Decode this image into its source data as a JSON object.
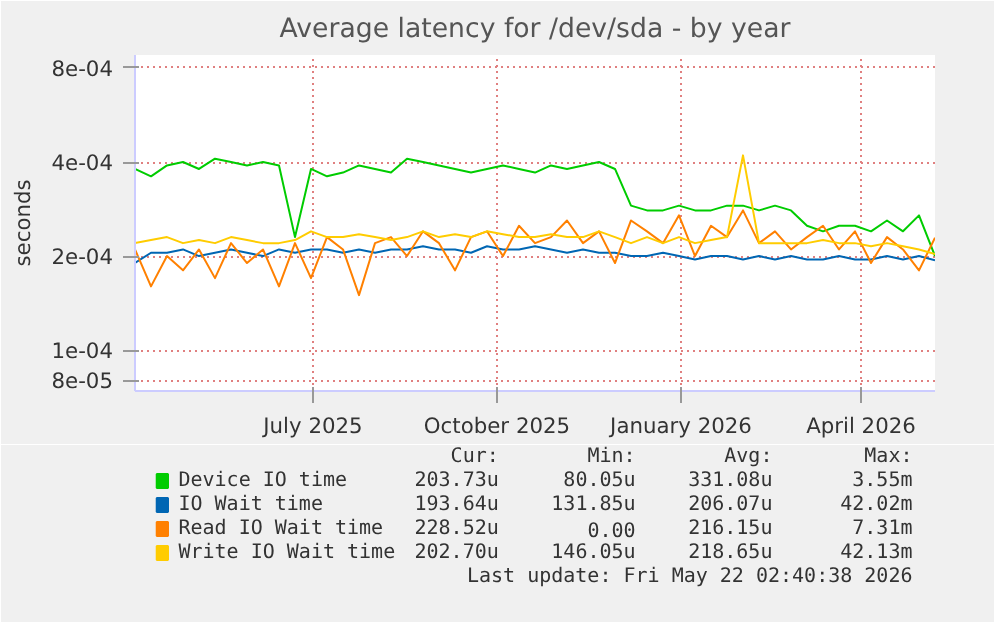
{
  "chart_data": {
    "type": "line",
    "title": "Average latency for /dev/sda - by year",
    "ylabel": "seconds",
    "log": "y",
    "grid": true,
    "legend": "bottom",
    "line_style": "solid",
    "xlim": [
      "2025-04-17",
      "2026-05-22"
    ],
    "xticks": [
      {
        "value": "2025-07-15",
        "label": "July 2025"
      },
      {
        "value": "2025-10-15",
        "label": "October 2025"
      },
      {
        "value": "2026-01-15",
        "label": "January 2026"
      },
      {
        "value": "2026-04-15",
        "label": "April 2026"
      }
    ],
    "ylim": [
      7.4e-05,
      0.00088
    ],
    "yticks": [
      {
        "value": 8e-05,
        "label": "8e-05"
      },
      {
        "value": 0.0001,
        "label": "1e-04"
      },
      {
        "value": 0.0002,
        "label": "2e-04"
      },
      {
        "value": 0.0004,
        "label": "4e-04"
      },
      {
        "value": 0.0008,
        "label": "8e-04"
      }
    ],
    "x": [
      "2025-04-17",
      "2025-04-25",
      "2025-05-03",
      "2025-05-11",
      "2025-05-19",
      "2025-05-27",
      "2025-06-04",
      "2025-06-12",
      "2025-06-20",
      "2025-06-28",
      "2025-07-06",
      "2025-07-14",
      "2025-07-22",
      "2025-07-30",
      "2025-08-07",
      "2025-08-15",
      "2025-08-23",
      "2025-08-31",
      "2025-09-08",
      "2025-09-16",
      "2025-09-24",
      "2025-10-02",
      "2025-10-10",
      "2025-10-18",
      "2025-10-26",
      "2025-11-03",
      "2025-11-11",
      "2025-11-19",
      "2025-11-27",
      "2025-12-05",
      "2025-12-13",
      "2025-12-21",
      "2025-12-29",
      "2026-01-06",
      "2026-01-14",
      "2026-01-22",
      "2026-01-30",
      "2026-02-07",
      "2026-02-15",
      "2026-02-23",
      "2026-03-03",
      "2026-03-11",
      "2026-03-19",
      "2026-03-27",
      "2026-04-04",
      "2026-04-12",
      "2026-04-20",
      "2026-04-28",
      "2026-05-06",
      "2026-05-14",
      "2026-05-22"
    ],
    "series": [
      {
        "name": "Device IO time",
        "color": "#00cc00",
        "values": [
          0.00038,
          0.00036,
          0.00039,
          0.0004,
          0.00038,
          0.00041,
          0.0004,
          0.00039,
          0.0004,
          0.00039,
          0.00023,
          0.00038,
          0.00036,
          0.00037,
          0.00039,
          0.00038,
          0.00037,
          0.00041,
          0.0004,
          0.00039,
          0.00038,
          0.00037,
          0.00038,
          0.00039,
          0.00038,
          0.00037,
          0.00039,
          0.00038,
          0.00039,
          0.0004,
          0.00038,
          0.00029,
          0.00028,
          0.00028,
          0.00029,
          0.00028,
          0.00028,
          0.00029,
          0.00029,
          0.00028,
          0.00029,
          0.00028,
          0.00025,
          0.00024,
          0.00025,
          0.00025,
          0.00024,
          0.00026,
          0.00024,
          0.00027,
          0.0002
        ]
      },
      {
        "name": "IO Wait time",
        "color": "#0066b3",
        "values": [
          0.00019,
          0.000205,
          0.000205,
          0.00021,
          0.0002,
          0.000205,
          0.00021,
          0.000205,
          0.0002,
          0.00021,
          0.000205,
          0.00021,
          0.00021,
          0.000205,
          0.00021,
          0.000205,
          0.00021,
          0.00021,
          0.000215,
          0.00021,
          0.00021,
          0.000205,
          0.000215,
          0.00021,
          0.00021,
          0.000215,
          0.00021,
          0.000205,
          0.00021,
          0.000205,
          0.000205,
          0.0002,
          0.0002,
          0.000205,
          0.0002,
          0.000195,
          0.0002,
          0.0002,
          0.000195,
          0.0002,
          0.000195,
          0.0002,
          0.000195,
          0.000195,
          0.0002,
          0.000195,
          0.000195,
          0.0002,
          0.000195,
          0.0002,
          0.000194
        ]
      },
      {
        "name": "Read IO Wait time",
        "color": "#ff8000",
        "values": [
          0.00021,
          0.00016,
          0.0002,
          0.00018,
          0.00021,
          0.00017,
          0.00022,
          0.00019,
          0.00021,
          0.00016,
          0.00022,
          0.00017,
          0.00023,
          0.00021,
          0.00015,
          0.00022,
          0.00023,
          0.0002,
          0.00024,
          0.00022,
          0.00018,
          0.00023,
          0.00024,
          0.0002,
          0.00025,
          0.00022,
          0.00023,
          0.00026,
          0.00022,
          0.00024,
          0.00019,
          0.00026,
          0.00024,
          0.00022,
          0.00027,
          0.0002,
          0.00025,
          0.00023,
          0.00028,
          0.00022,
          0.00024,
          0.00021,
          0.00023,
          0.00025,
          0.00021,
          0.00024,
          0.00019,
          0.00023,
          0.00021,
          0.00018,
          0.000229
        ]
      },
      {
        "name": "Write IO Wait time",
        "color": "#ffcc00",
        "values": [
          0.00022,
          0.000225,
          0.00023,
          0.00022,
          0.000225,
          0.00022,
          0.00023,
          0.000225,
          0.00022,
          0.00022,
          0.000225,
          0.00024,
          0.00023,
          0.00023,
          0.000235,
          0.00023,
          0.000225,
          0.00023,
          0.00024,
          0.00023,
          0.000235,
          0.00023,
          0.00024,
          0.000235,
          0.00023,
          0.00023,
          0.000235,
          0.00023,
          0.00023,
          0.00024,
          0.00023,
          0.00022,
          0.00023,
          0.00022,
          0.00023,
          0.00022,
          0.000225,
          0.00023,
          0.00042,
          0.00022,
          0.00022,
          0.00022,
          0.00022,
          0.000225,
          0.00022,
          0.00022,
          0.000215,
          0.00022,
          0.000215,
          0.00021,
          0.000203
        ]
      }
    ],
    "annotations": [
      "Cur:",
      "Min:",
      "Avg:",
      "Max:",
      "203.73u",
      "80.05u",
      "331.08u",
      "3.55m",
      "193.64u",
      "131.85u",
      "206.07u",
      "42.02m",
      "228.52u",
      "0.00",
      "216.15u",
      "7.31m",
      "202.70u",
      "146.05u",
      "218.65u",
      "42.13m",
      "Last update: Fri May 22 02:40:38 2026"
    ]
  }
}
